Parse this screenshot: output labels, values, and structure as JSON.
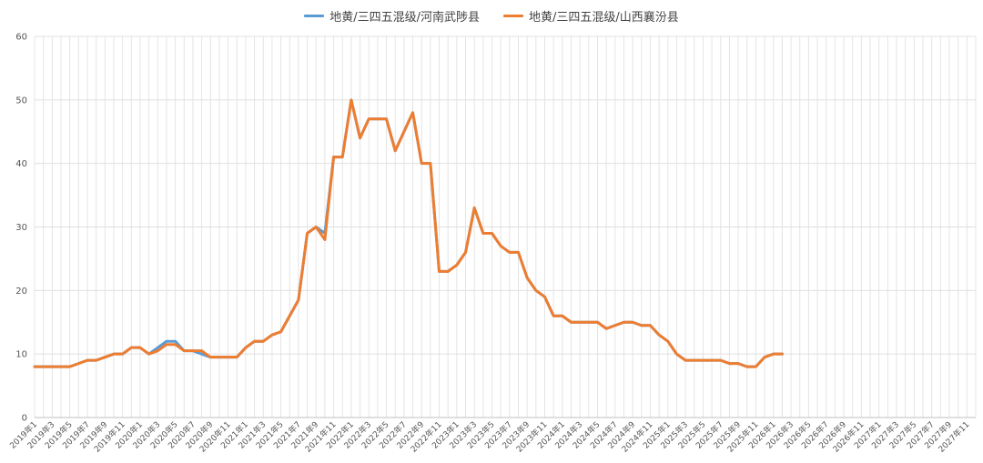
{
  "chart_data": {
    "type": "line",
    "title": "",
    "xlabel": "",
    "ylabel": "",
    "ylim": [
      0,
      60
    ],
    "yticks": [
      0,
      10,
      20,
      30,
      40,
      50,
      60
    ],
    "grid": true,
    "legend_position": "top-center",
    "colors": {
      "series_1": "#5b9bd5",
      "series_2": "#ed7d31"
    },
    "x_tick_labels": [
      "2019年1",
      "2019年3",
      "2019年5",
      "2019年7",
      "2019年9",
      "2019年11",
      "2020年1",
      "2020年3",
      "2020年5",
      "2020年7",
      "2020年9",
      "2020年11",
      "2021年1",
      "2021年3",
      "2021年5",
      "2021年7",
      "2021年9",
      "2021年11",
      "2022年1",
      "2022年3",
      "2022年5",
      "2022年7",
      "2022年9",
      "2022年11",
      "2023年1",
      "2023年3",
      "2023年5",
      "2023年7",
      "2023年9",
      "2023年11",
      "2024年1",
      "2024年3",
      "2024年5",
      "2024年7",
      "2024年9",
      "2024年11",
      "2025年1",
      "2025年3",
      "2025年5",
      "2025年7",
      "2025年9",
      "2025年11",
      "2026年1",
      "2026年3",
      "2026年5",
      "2026年7",
      "2026年9",
      "2026年11",
      "2027年1",
      "2027年3",
      "2027年5",
      "2027年7",
      "2027年9",
      "2027年11"
    ],
    "series": [
      {
        "name": "地黄/三四五混级/河南武陟县",
        "points": [
          [
            "2019年1",
            8
          ],
          [
            "2019年2",
            8
          ],
          [
            "2019年3",
            8
          ],
          [
            "2019年4",
            8
          ],
          [
            "2019年5",
            8
          ],
          [
            "2019年6",
            8.5
          ],
          [
            "2019年7",
            9
          ],
          [
            "2019年8",
            9
          ],
          [
            "2019年9",
            9.5
          ],
          [
            "2019年10",
            10
          ],
          [
            "2019年11",
            10
          ],
          [
            "2019年12",
            11
          ],
          [
            "2020年1",
            11
          ],
          [
            "2020年2",
            10
          ],
          [
            "2020年3",
            11
          ],
          [
            "2020年4",
            12
          ],
          [
            "2020年5",
            12
          ],
          [
            "2020年6",
            10.5
          ],
          [
            "2020年7",
            10.5
          ],
          [
            "2020年8",
            10
          ],
          [
            "2020年9",
            9.5
          ],
          [
            "2020年10",
            9.5
          ],
          [
            "2020年11",
            9.5
          ],
          [
            "2020年12",
            9.5
          ],
          [
            "2021年1",
            11
          ],
          [
            "2021年2",
            12
          ],
          [
            "2021年3",
            12
          ],
          [
            "2021年4",
            13
          ],
          [
            "2021年5",
            13.5
          ],
          [
            "2021年6",
            16
          ],
          [
            "2021年7",
            18.5
          ],
          [
            "2021年8",
            29
          ],
          [
            "2021年9",
            30
          ],
          [
            "2021年10",
            29
          ],
          [
            "2021年11",
            41
          ],
          [
            "2021年12",
            41
          ],
          [
            "2022年1",
            50
          ],
          [
            "2022年2",
            44
          ],
          [
            "2022年3",
            47
          ],
          [
            "2022年4",
            47
          ],
          [
            "2022年5",
            47
          ],
          [
            "2022年6",
            42
          ],
          [
            "2022年7",
            45
          ],
          [
            "2022年8",
            48
          ],
          [
            "2022年9",
            40
          ],
          [
            "2022年10",
            40
          ],
          [
            "2022年11",
            23
          ],
          [
            "2022年12",
            23
          ],
          [
            "2023年1",
            24
          ],
          [
            "2023年2",
            26
          ],
          [
            "2023年3",
            33
          ],
          [
            "2023年4",
            29
          ],
          [
            "2023年5",
            29
          ],
          [
            "2023年6",
            27
          ],
          [
            "2023年7",
            26
          ],
          [
            "2023年8",
            26
          ],
          [
            "2023年9",
            22
          ],
          [
            "2023年10",
            20
          ],
          [
            "2023年11",
            19
          ],
          [
            "2023年12",
            16
          ],
          [
            "2024年1",
            16
          ],
          [
            "2024年2",
            15
          ],
          [
            "2024年3",
            15
          ],
          [
            "2024年4",
            15
          ],
          [
            "2024年5",
            15
          ],
          [
            "2024年6",
            14
          ],
          [
            "2024年7",
            14.5
          ],
          [
            "2024年8",
            15
          ],
          [
            "2024年9",
            15
          ],
          [
            "2024年10",
            14.5
          ],
          [
            "2024年11",
            14.5
          ],
          [
            "2024年12",
            13
          ],
          [
            "2025年1",
            12
          ],
          [
            "2025年2",
            10
          ],
          [
            "2025年3",
            9
          ],
          [
            "2025年4",
            9
          ],
          [
            "2025年5",
            9
          ],
          [
            "2025年6",
            9
          ],
          [
            "2025年7",
            9
          ],
          [
            "2025年8",
            8.5
          ],
          [
            "2025年9",
            8.5
          ],
          [
            "2025年10",
            8
          ],
          [
            "2025年11",
            8
          ],
          [
            "2025年12",
            9.5
          ],
          [
            "2026年1",
            10
          ],
          [
            "2026年2",
            10
          ]
        ]
      },
      {
        "name": "地黄/三四五混级/山西襄汾县",
        "points": [
          [
            "2019年1",
            8
          ],
          [
            "2019年2",
            8
          ],
          [
            "2019年3",
            8
          ],
          [
            "2019年4",
            8
          ],
          [
            "2019年5",
            8
          ],
          [
            "2019年6",
            8.5
          ],
          [
            "2019年7",
            9
          ],
          [
            "2019年8",
            9
          ],
          [
            "2019年9",
            9.5
          ],
          [
            "2019年10",
            10
          ],
          [
            "2019年11",
            10
          ],
          [
            "2019年12",
            11
          ],
          [
            "2020年1",
            11
          ],
          [
            "2020年2",
            10
          ],
          [
            "2020年3",
            10.5
          ],
          [
            "2020年4",
            11.5
          ],
          [
            "2020年5",
            11.5
          ],
          [
            "2020年6",
            10.5
          ],
          [
            "2020年7",
            10.5
          ],
          [
            "2020年8",
            10.5
          ],
          [
            "2020年9",
            9.5
          ],
          [
            "2020年10",
            9.5
          ],
          [
            "2020年11",
            9.5
          ],
          [
            "2020年12",
            9.5
          ],
          [
            "2021年1",
            11
          ],
          [
            "2021年2",
            12
          ],
          [
            "2021年3",
            12
          ],
          [
            "2021年4",
            13
          ],
          [
            "2021年5",
            13.5
          ],
          [
            "2021年6",
            16
          ],
          [
            "2021年7",
            18.5
          ],
          [
            "2021年8",
            29
          ],
          [
            "2021年9",
            30
          ],
          [
            "2021年10",
            28
          ],
          [
            "2021年11",
            41
          ],
          [
            "2021年12",
            41
          ],
          [
            "2022年1",
            50
          ],
          [
            "2022年2",
            44
          ],
          [
            "2022年3",
            47
          ],
          [
            "2022年4",
            47
          ],
          [
            "2022年5",
            47
          ],
          [
            "2022年6",
            42
          ],
          [
            "2022年7",
            45
          ],
          [
            "2022年8",
            48
          ],
          [
            "2022年9",
            40
          ],
          [
            "2022年10",
            40
          ],
          [
            "2022年11",
            23
          ],
          [
            "2022年12",
            23
          ],
          [
            "2023年1",
            24
          ],
          [
            "2023年2",
            26
          ],
          [
            "2023年3",
            33
          ],
          [
            "2023年4",
            29
          ],
          [
            "2023年5",
            29
          ],
          [
            "2023年6",
            27
          ],
          [
            "2023年7",
            26
          ],
          [
            "2023年8",
            26
          ],
          [
            "2023年9",
            22
          ],
          [
            "2023年10",
            20
          ],
          [
            "2023年11",
            19
          ],
          [
            "2023年12",
            16
          ],
          [
            "2024年1",
            16
          ],
          [
            "2024年2",
            15
          ],
          [
            "2024年3",
            15
          ],
          [
            "2024年4",
            15
          ],
          [
            "2024年5",
            15
          ],
          [
            "2024年6",
            14
          ],
          [
            "2024年7",
            14.5
          ],
          [
            "2024年8",
            15
          ],
          [
            "2024年9",
            15
          ],
          [
            "2024年10",
            14.5
          ],
          [
            "2024年11",
            14.5
          ],
          [
            "2024年12",
            13
          ],
          [
            "2025年1",
            12
          ],
          [
            "2025年2",
            10
          ],
          [
            "2025年3",
            9
          ],
          [
            "2025年4",
            9
          ],
          [
            "2025年5",
            9
          ],
          [
            "2025年6",
            9
          ],
          [
            "2025年7",
            9
          ],
          [
            "2025年8",
            8.5
          ],
          [
            "2025年9",
            8.5
          ],
          [
            "2025年10",
            8
          ],
          [
            "2025年11",
            8
          ],
          [
            "2025年12",
            9.5
          ],
          [
            "2026年1",
            10
          ],
          [
            "2026年2",
            10
          ]
        ]
      }
    ]
  }
}
